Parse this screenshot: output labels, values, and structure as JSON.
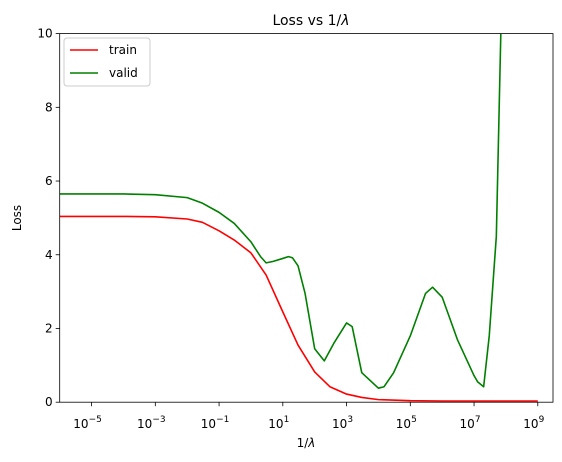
{
  "chart_data": {
    "type": "line",
    "title": {
      "main": "Loss vs 1/",
      "symbol": "λ"
    },
    "xlabel": {
      "main": "1/",
      "symbol": "λ"
    },
    "ylabel": "Loss",
    "xscale": "log",
    "xlim": [
      1e-06,
      3000000000.0
    ],
    "ylim": [
      0,
      10
    ],
    "x_ticks": [
      {
        "base": "10",
        "exp": "−5",
        "value": 1e-05
      },
      {
        "base": "10",
        "exp": "−3",
        "value": 0.001
      },
      {
        "base": "10",
        "exp": "−1",
        "value": 0.1
      },
      {
        "base": "10",
        "exp": "1",
        "value": 10
      },
      {
        "base": "10",
        "exp": "3",
        "value": 1000
      },
      {
        "base": "10",
        "exp": "5",
        "value": 100000
      },
      {
        "base": "10",
        "exp": "7",
        "value": 10000000
      },
      {
        "base": "10",
        "exp": "9",
        "value": 1000000000
      }
    ],
    "y_ticks": [
      "0",
      "2",
      "4",
      "6",
      "8",
      "10"
    ],
    "grid": false,
    "legend_position": "top-left",
    "series": [
      {
        "name": "train",
        "color": "#ff0000",
        "x": [
          1e-06,
          1e-05,
          0.0001,
          0.001,
          0.01,
          0.03,
          0.1,
          0.3,
          1,
          3,
          10,
          30,
          100,
          300,
          1000,
          3000,
          10000,
          100000,
          1000000,
          10000000,
          100000000,
          1000000000
        ],
        "y": [
          5.04,
          5.04,
          5.04,
          5.03,
          4.97,
          4.88,
          4.65,
          4.4,
          4.05,
          3.45,
          2.45,
          1.55,
          0.82,
          0.42,
          0.22,
          0.13,
          0.07,
          0.04,
          0.03,
          0.03,
          0.03,
          0.03
        ]
      },
      {
        "name": "valid",
        "color": "#008000",
        "x": [
          1e-06,
          1e-05,
          0.0001,
          0.001,
          0.01,
          0.03,
          0.1,
          0.3,
          1,
          2,
          3,
          5,
          10,
          15,
          20,
          30,
          50,
          100,
          200,
          400,
          1000,
          1500,
          3000,
          10000,
          15000,
          30000,
          100000,
          300000,
          500000,
          1000000,
          3000000,
          10000000,
          13000000,
          20000000,
          30000000,
          50000000,
          70000000
        ],
        "y": [
          5.65,
          5.65,
          5.65,
          5.63,
          5.55,
          5.4,
          5.15,
          4.85,
          4.35,
          3.95,
          3.78,
          3.82,
          3.9,
          3.95,
          3.92,
          3.7,
          2.95,
          1.45,
          1.12,
          1.6,
          2.15,
          2.05,
          0.8,
          0.38,
          0.42,
          0.8,
          1.8,
          2.95,
          3.12,
          2.85,
          1.7,
          0.72,
          0.55,
          0.42,
          1.8,
          4.5,
          10.2
        ]
      }
    ]
  }
}
